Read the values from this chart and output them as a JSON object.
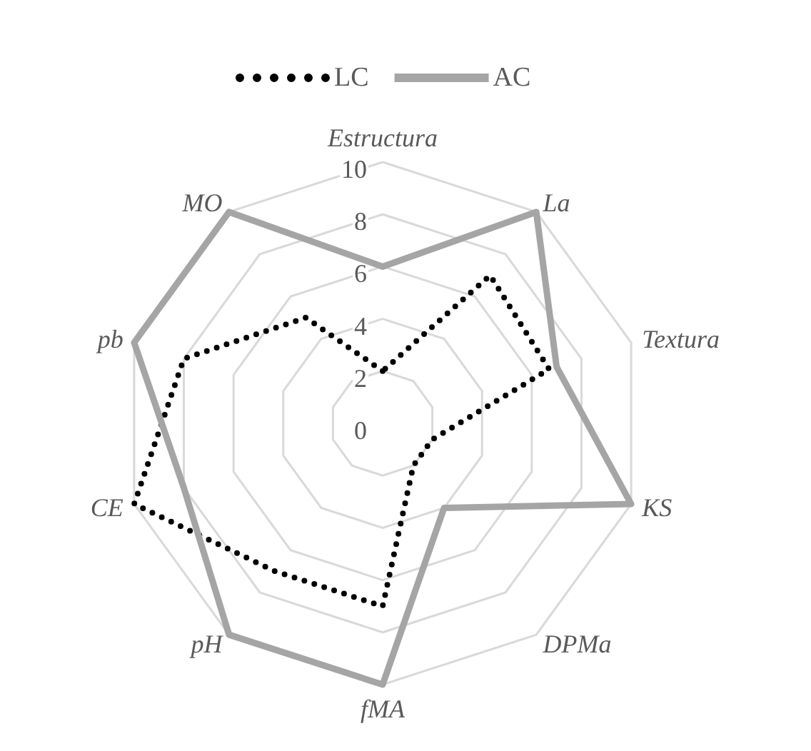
{
  "chart_data": {
    "type": "radar",
    "categories": [
      "Estructura",
      "La",
      "Textura",
      "KS",
      "DPMa",
      "fMA",
      "pH",
      "CE",
      "pb",
      "MO"
    ],
    "series": [
      {
        "name": "LC",
        "color": "#000000",
        "line_style": "dotted",
        "values": [
          2,
          7,
          6.7,
          2,
          2,
          7,
          7,
          10,
          8,
          5
        ]
      },
      {
        "name": "AC",
        "color": "#a5a5a5",
        "line_style": "solid",
        "values": [
          6,
          10,
          7,
          10,
          4,
          10,
          10,
          8,
          10,
          10
        ]
      }
    ],
    "ylim": [
      0,
      10
    ],
    "yticks": [
      0,
      2,
      4,
      6,
      8,
      10
    ],
    "grid": true,
    "legend": "top",
    "marker": "none"
  }
}
